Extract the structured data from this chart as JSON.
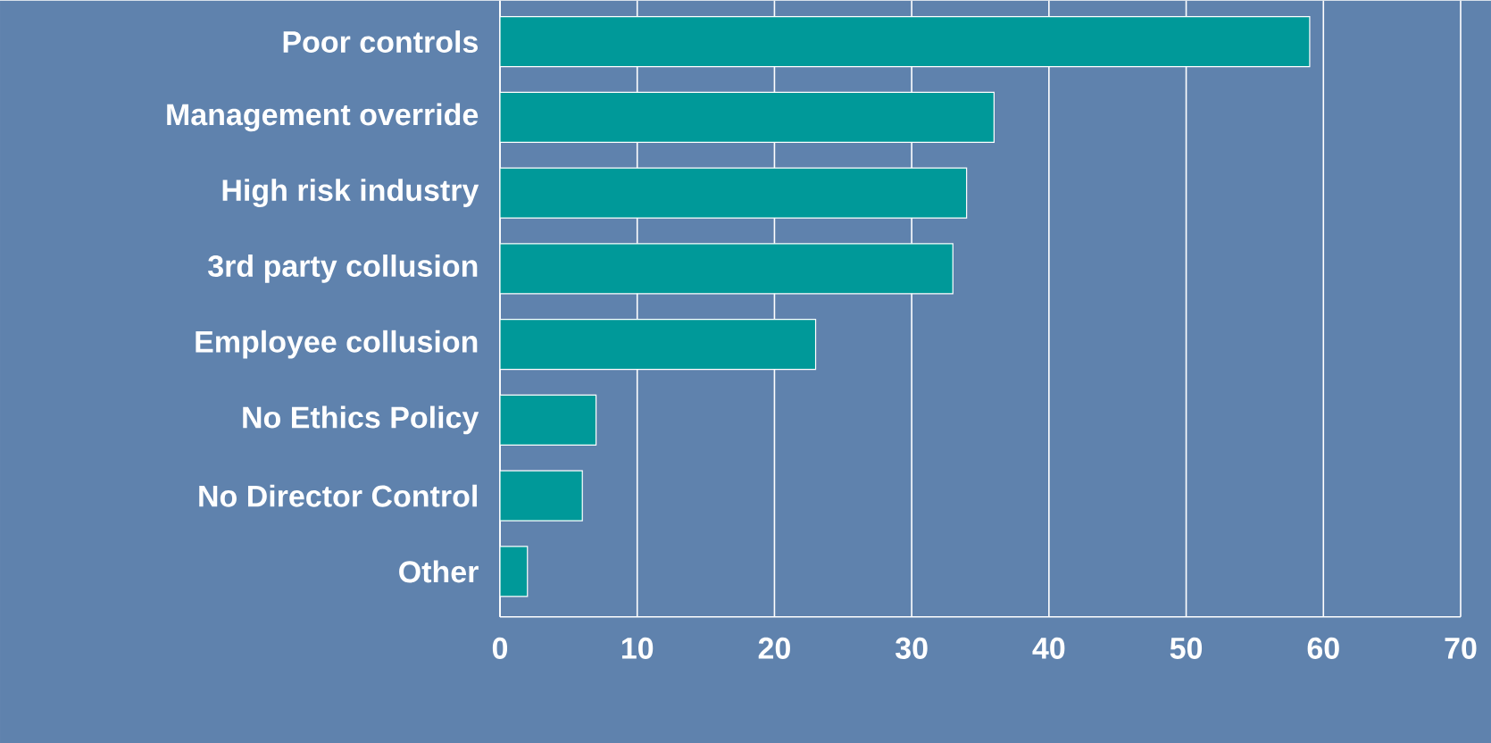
{
  "chart_data": {
    "type": "bar",
    "orientation": "horizontal",
    "categories": [
      "Poor controls",
      "Management override",
      "High risk industry",
      "3rd party collusion",
      "Employee collusion",
      "No Ethics Policy",
      "No Director Control",
      "Other"
    ],
    "values": [
      59,
      36,
      34,
      33,
      23,
      7,
      6,
      2
    ],
    "color": "#009999",
    "xlim": [
      0,
      70
    ],
    "xticks": [
      0,
      10,
      20,
      30,
      40,
      50,
      60,
      70
    ],
    "grid": "x"
  }
}
